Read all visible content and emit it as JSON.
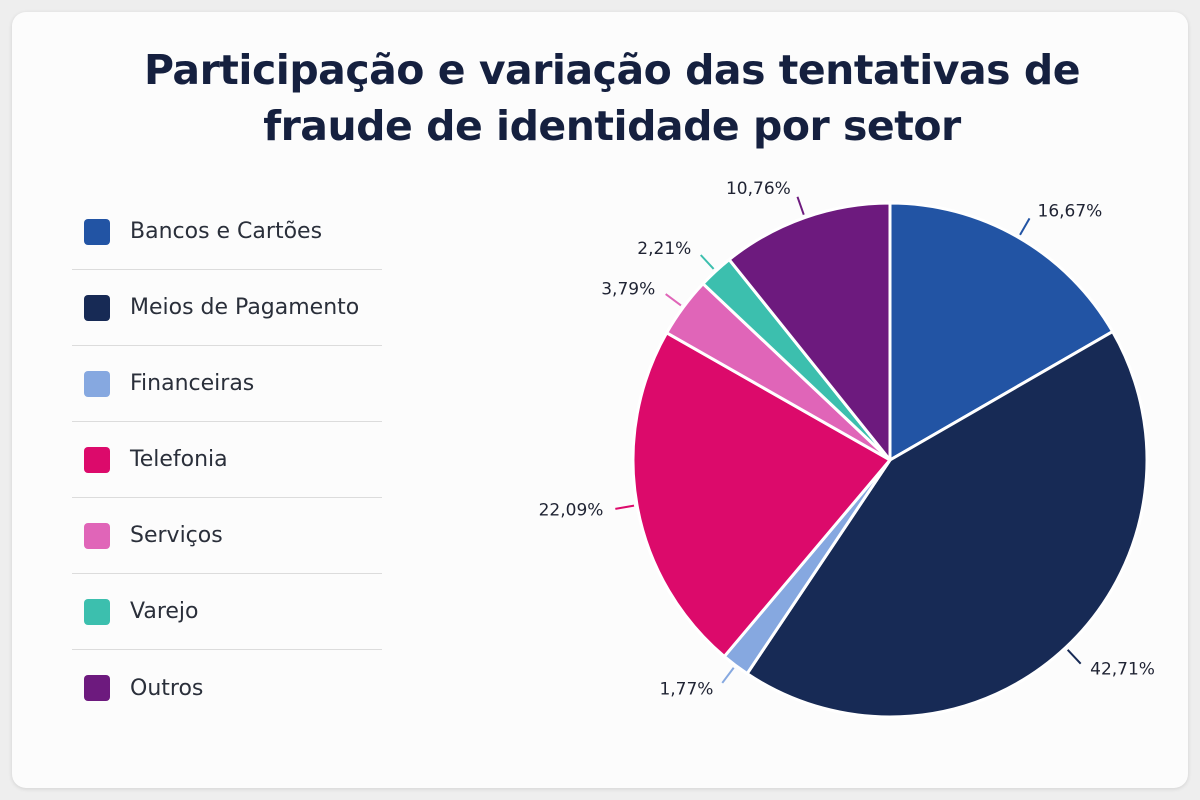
{
  "chart_data": {
    "type": "pie",
    "title": "Participação e variação das tentativas de fraude de identidade por setor",
    "legend_position": "left",
    "slices": [
      {
        "name": "Bancos e Cartões",
        "value": 16.67,
        "label": "16,67%",
        "color": "#2254a4"
      },
      {
        "name": "Meios de Pagamento",
        "value": 42.71,
        "label": "42,71%",
        "color": "#172a55"
      },
      {
        "name": "Financeiras",
        "value": 1.77,
        "label": "1,77%",
        "color": "#86a8e0"
      },
      {
        "name": "Telefonia",
        "value": 22.09,
        "label": "22,09%",
        "color": "#dc0a6b"
      },
      {
        "name": "Serviços",
        "value": 3.79,
        "label": "3,79%",
        "color": "#e065b8"
      },
      {
        "name": "Varejo",
        "value": 2.21,
        "label": "2,21%",
        "color": "#3cbfae"
      },
      {
        "name": "Outros",
        "value": 10.76,
        "label": "10,76%",
        "color": "#6d1a7e"
      }
    ]
  }
}
